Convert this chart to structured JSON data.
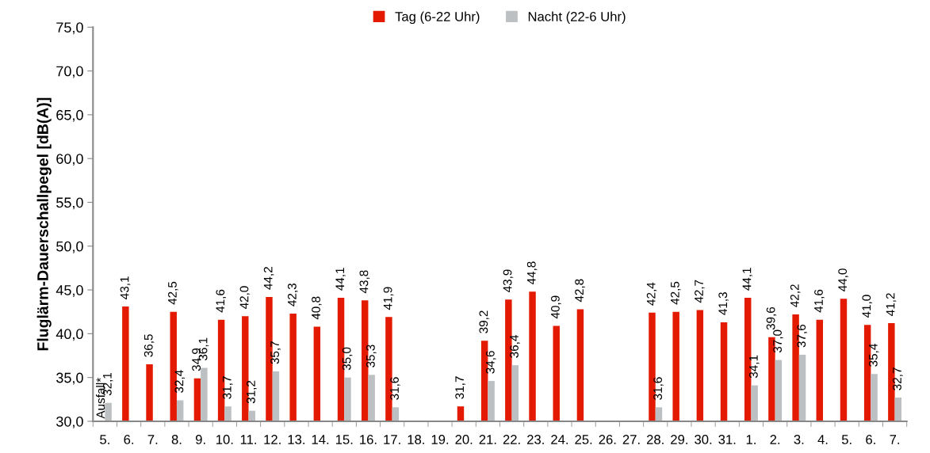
{
  "chart_data": {
    "type": "bar",
    "ylabel": "Fluglärm-Dauerschallpegel [dB(A)]",
    "categories": [
      "5.",
      "6.",
      "7.",
      "8.",
      "9.",
      "10.",
      "11.",
      "12.",
      "13.",
      "14.",
      "15.",
      "16.",
      "17.",
      "18.",
      "19.",
      "20.",
      "21.",
      "22.",
      "23.",
      "24.",
      "25.",
      "26.",
      "27.",
      "28.",
      "29.",
      "30.",
      "31.",
      "1.",
      "2.",
      "3.",
      "4.",
      "5.",
      "6.",
      "7."
    ],
    "series": [
      {
        "name": "Tag (6-22 Uhr)",
        "color": "#e41a00",
        "values": [
          null,
          43.1,
          36.5,
          42.5,
          34.9,
          41.6,
          42.0,
          44.2,
          42.3,
          40.8,
          44.1,
          43.8,
          41.9,
          null,
          null,
          31.7,
          39.2,
          43.9,
          44.8,
          40.9,
          42.8,
          null,
          null,
          42.4,
          42.5,
          42.7,
          41.3,
          44.1,
          39.6,
          42.2,
          41.6,
          44.0,
          41.0,
          41.2
        ],
        "value_labels": [
          null,
          "43,1",
          "36,5",
          "42,5",
          "34,9",
          "41,6",
          "42,0",
          "44,2",
          "42,3",
          "40,8",
          "44,1",
          "43,8",
          "41,9",
          null,
          null,
          "31,7",
          "39,2",
          "43,9",
          "44,8",
          "40,9",
          "42,8",
          null,
          null,
          "42,4",
          "42,5",
          "42,7",
          "41,3",
          "44,1",
          "39,6",
          "42,2",
          "41,6",
          "44,0",
          "41,0",
          "41,2"
        ]
      },
      {
        "name": "Nacht (22-6 Uhr)",
        "color": "#bcc0c2",
        "values": [
          32.1,
          null,
          null,
          32.4,
          36.1,
          31.7,
          31.2,
          35.7,
          null,
          null,
          35.0,
          35.3,
          31.6,
          null,
          null,
          null,
          34.6,
          36.4,
          null,
          null,
          null,
          null,
          null,
          31.6,
          null,
          null,
          null,
          34.1,
          37.0,
          37.6,
          null,
          null,
          35.4,
          32.7
        ],
        "value_labels": [
          "32,1",
          null,
          null,
          "32,4",
          "36,1",
          "31,7",
          "31,2",
          "35,7",
          null,
          null,
          "35,0",
          "35,3",
          "31,6",
          null,
          null,
          null,
          "34,6",
          "36,4",
          null,
          null,
          null,
          null,
          null,
          "31,6",
          null,
          null,
          null,
          "34,1",
          "37,0",
          "37,6",
          null,
          null,
          "35,4",
          "32,7"
        ]
      }
    ],
    "ylim": [
      30,
      75
    ],
    "yticks": [
      {
        "value": 30,
        "label": "30,0"
      },
      {
        "value": 35,
        "label": "35,0"
      },
      {
        "value": 40,
        "label": "40,0"
      },
      {
        "value": 45,
        "label": "45,0"
      },
      {
        "value": 50,
        "label": "50,0"
      },
      {
        "value": 55,
        "label": "55,0"
      },
      {
        "value": 60,
        "label": "60,0"
      },
      {
        "value": 65,
        "label": "65,0"
      },
      {
        "value": 70,
        "label": "70,0"
      },
      {
        "value": 75,
        "label": "75,0"
      }
    ],
    "annotations": [
      {
        "text": "Ausfall*",
        "x": "5.",
        "y": 30
      }
    ],
    "legend": "top",
    "grid": false
  }
}
